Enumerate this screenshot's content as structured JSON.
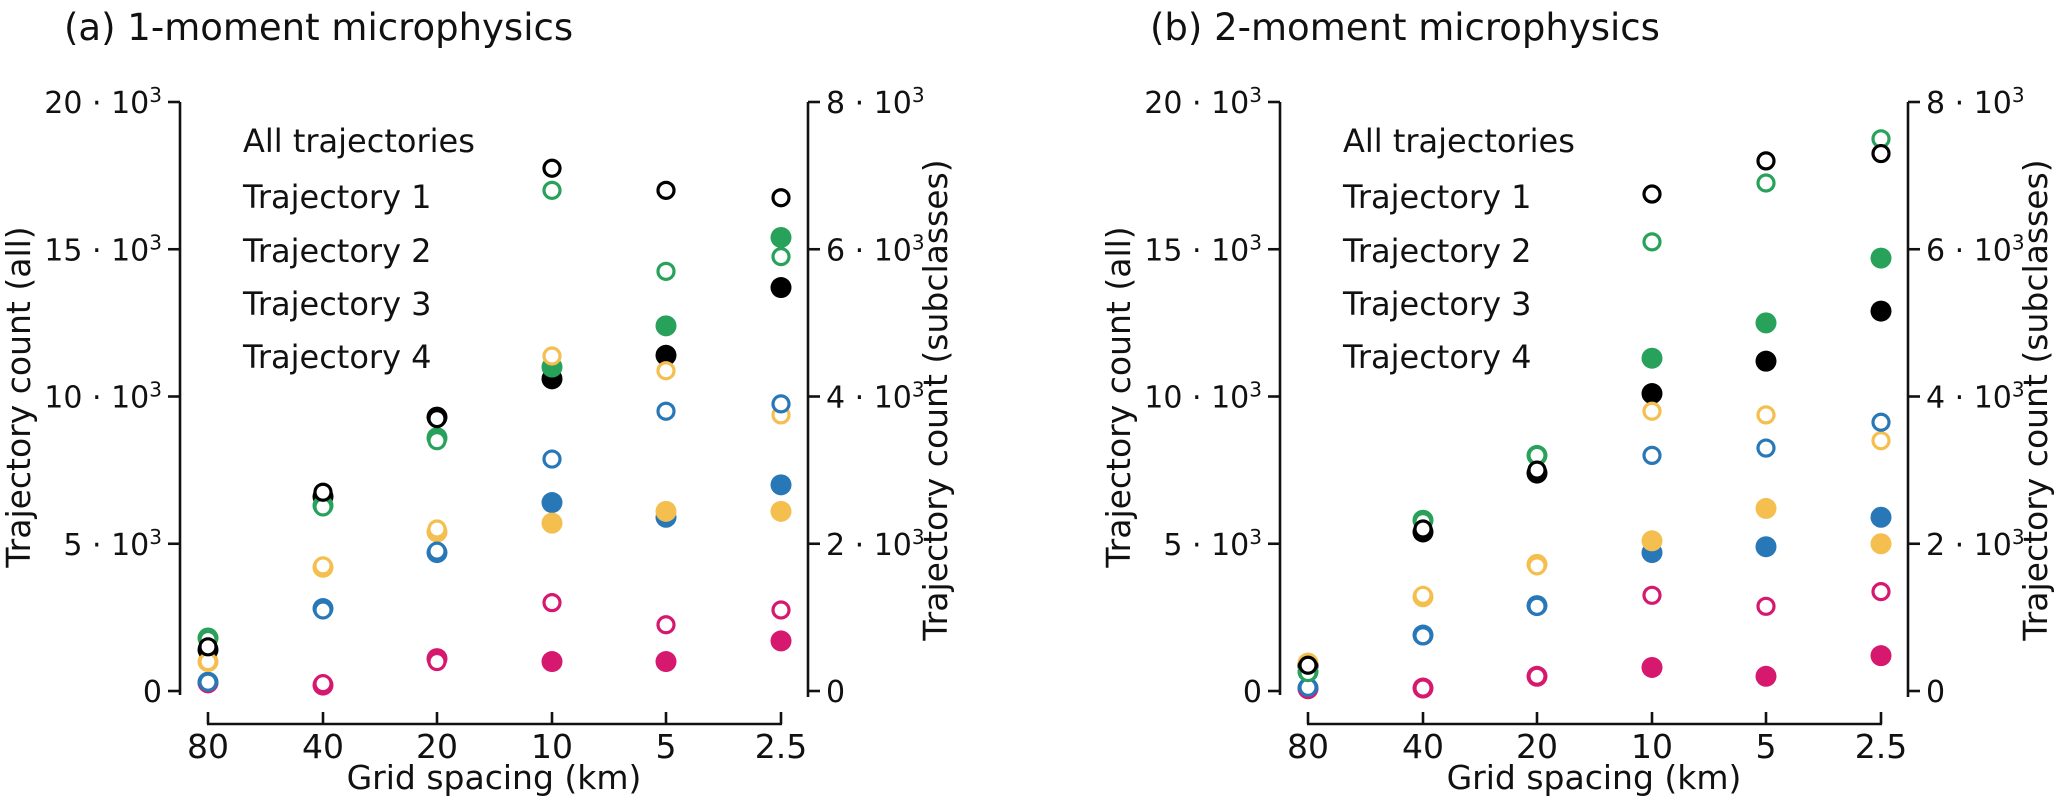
{
  "figure_caption": "Trajectory counts vs grid spacing, 1-moment and 2-moment microphysics",
  "chart_data": [
    {
      "type": "scatter",
      "panel": "a",
      "title": "(a) 1-moment microphysics",
      "x_axis": {
        "label": "Grid spacing (km)",
        "categories": [
          "80",
          "40",
          "20",
          "10",
          "5",
          "2.5"
        ]
      },
      "y_axis_left": {
        "label": "Trajectory count (all)",
        "range": [
          0,
          20000
        ],
        "tick_values": [
          0,
          5000,
          10000,
          15000,
          20000
        ],
        "tick_labels": [
          [
            "0",
            ""
          ],
          [
            "5 · 10",
            "3"
          ],
          [
            "10 · 10",
            "3"
          ],
          [
            "15 · 10",
            "3"
          ],
          [
            "20 · 10",
            "3"
          ]
        ]
      },
      "y_axis_right": {
        "label": "Trajectory count (subclasses)",
        "range": [
          0,
          8000
        ],
        "tick_values": [
          0,
          2000,
          4000,
          6000,
          8000
        ],
        "tick_labels": [
          [
            "0",
            ""
          ],
          [
            "2 · 10",
            "3"
          ],
          [
            "4 · 10",
            "3"
          ],
          [
            "6 · 10",
            "3"
          ],
          [
            "8 · 10",
            "3"
          ]
        ]
      },
      "marker_note": "filled circles = left axis (all), open circles = right axis (subclasses)",
      "series": [
        {
          "key": "all",
          "label": "All trajectories",
          "color": "#000000",
          "filled_values": [
            1400,
            6600,
            9300,
            10600,
            11400,
            13700
          ],
          "open_values": [
            600,
            2700,
            3700,
            7100,
            6800,
            6700
          ]
        },
        {
          "key": "t1",
          "label": "Trajectory 1",
          "color": "#2878b8",
          "filled_values": [
            300,
            2800,
            4700,
            6400,
            5900,
            7000
          ],
          "open_values": [
            120,
            1100,
            1900,
            3150,
            3800,
            3900
          ]
        },
        {
          "key": "t2",
          "label": "Trajectory 2",
          "color": "#28a25b",
          "filled_values": [
            1800,
            6300,
            8600,
            11000,
            12400,
            15400
          ],
          "open_values": [
            700,
            2500,
            3400,
            6800,
            5700,
            5900
          ]
        },
        {
          "key": "t3",
          "label": "Trajectory 3",
          "color": "#f5bf50",
          "filled_values": [
            1000,
            4200,
            5400,
            5700,
            6100,
            6100
          ],
          "open_values": [
            400,
            1700,
            2200,
            4550,
            4350,
            3750
          ]
        },
        {
          "key": "t4",
          "label": "Trajectory 4",
          "color": "#d6196f",
          "filled_values": [
            280,
            200,
            1100,
            1000,
            1000,
            1700
          ],
          "open_values": [
            100,
            100,
            400,
            1200,
            900,
            1100
          ]
        }
      ]
    },
    {
      "type": "scatter",
      "panel": "b",
      "title": "(b) 2-moment microphysics",
      "x_axis": {
        "label": "Grid spacing (km)",
        "categories": [
          "80",
          "40",
          "20",
          "10",
          "5",
          "2.5"
        ]
      },
      "y_axis_left": {
        "label": "Trajectory count (all)",
        "range": [
          0,
          20000
        ],
        "tick_values": [
          0,
          5000,
          10000,
          15000,
          20000
        ],
        "tick_labels": [
          [
            "0",
            ""
          ],
          [
            "5 · 10",
            "3"
          ],
          [
            "10 · 10",
            "3"
          ],
          [
            "15 · 10",
            "3"
          ],
          [
            "20 · 10",
            "3"
          ]
        ]
      },
      "y_axis_right": {
        "label": "Trajectory count (subclasses)",
        "range": [
          0,
          8000
        ],
        "tick_values": [
          0,
          2000,
          4000,
          6000,
          8000
        ],
        "tick_labels": [
          [
            "0",
            ""
          ],
          [
            "2 · 10",
            "3"
          ],
          [
            "4 · 10",
            "3"
          ],
          [
            "6 · 10",
            "3"
          ],
          [
            "8 · 10",
            "3"
          ]
        ]
      },
      "marker_note": "filled circles = left axis (all), open circles = right axis (subclasses)",
      "series": [
        {
          "key": "all",
          "label": "All trajectories",
          "color": "#000000",
          "filled_values": [
            850,
            5400,
            7400,
            10100,
            11200,
            12900
          ],
          "open_values": [
            350,
            2200,
            3000,
            6750,
            7200,
            7300
          ]
        },
        {
          "key": "t1",
          "label": "Trajectory 1",
          "color": "#2878b8",
          "filled_values": [
            100,
            1900,
            2900,
            4700,
            4900,
            5900
          ],
          "open_values": [
            50,
            750,
            1150,
            3200,
            3300,
            3650
          ]
        },
        {
          "key": "t2",
          "label": "Trajectory 2",
          "color": "#28a25b",
          "filled_values": [
            650,
            5800,
            8000,
            11300,
            12500,
            14700
          ],
          "open_values": [
            250,
            2300,
            3200,
            6100,
            6900,
            7500
          ]
        },
        {
          "key": "t3",
          "label": "Trajectory 3",
          "color": "#f5bf50",
          "filled_values": [
            950,
            3200,
            4300,
            5100,
            6200,
            5000
          ],
          "open_values": [
            380,
            1300,
            1700,
            3800,
            3750,
            3400
          ]
        },
        {
          "key": "t4",
          "label": "Trajectory 4",
          "color": "#d6196f",
          "filled_values": [
            80,
            100,
            500,
            800,
            500,
            1200
          ],
          "open_values": [
            20,
            40,
            200,
            1300,
            1150,
            1350
          ]
        }
      ]
    }
  ]
}
